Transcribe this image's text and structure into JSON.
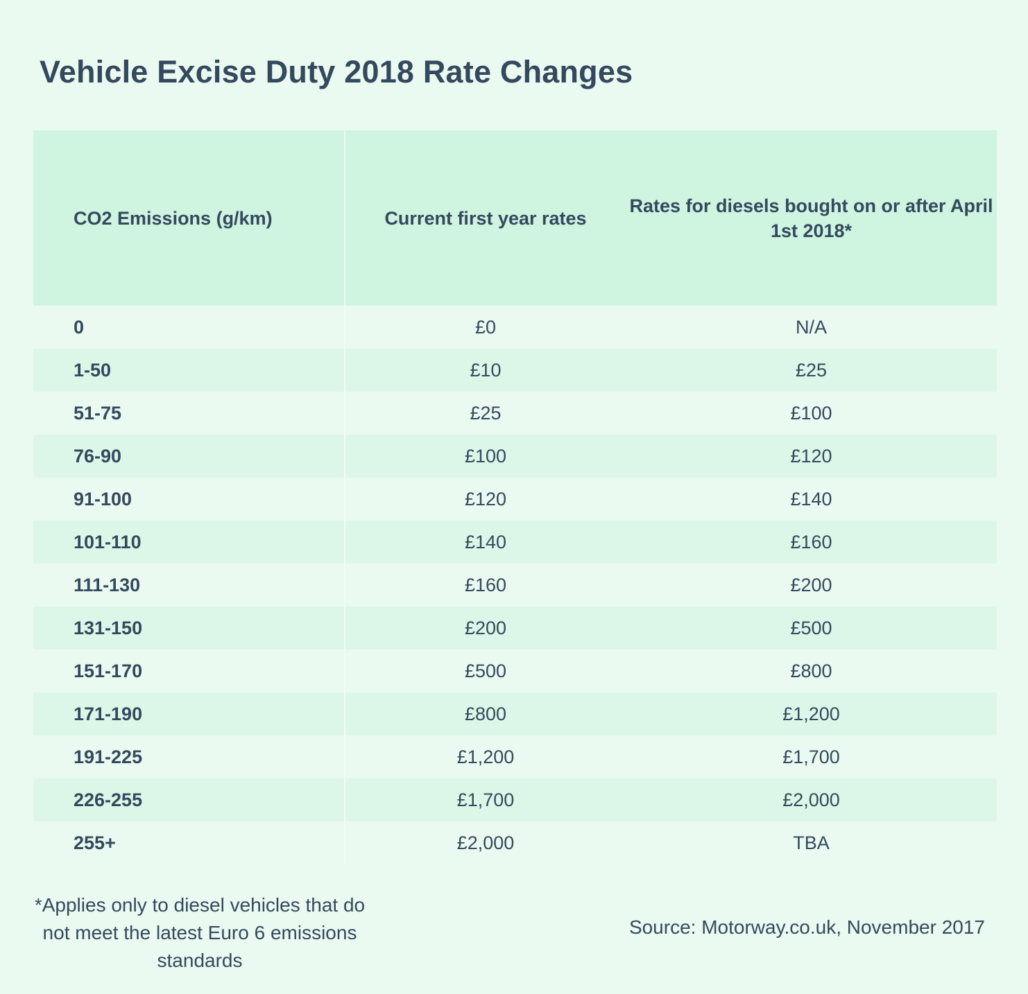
{
  "title": "Vehicle Excise Duty 2018 Rate Changes",
  "chart_data": {
    "type": "table",
    "columns": [
      "CO2 Emissions (g/km)",
      "Current first year rates",
      "Rates for diesels bought on or after April 1st 2018*"
    ],
    "rows": [
      [
        "0",
        "£0",
        "N/A"
      ],
      [
        "1-50",
        "£10",
        "£25"
      ],
      [
        "51-75",
        "£25",
        "£100"
      ],
      [
        "76-90",
        "£100",
        "£120"
      ],
      [
        "91-100",
        "£120",
        "£140"
      ],
      [
        "101-110",
        "£140",
        "£160"
      ],
      [
        "111-130",
        "£160",
        "£200"
      ],
      [
        "131-150",
        "£200",
        "£500"
      ],
      [
        "151-170",
        "£500",
        "£800"
      ],
      [
        "171-190",
        "£800",
        "£1,200"
      ],
      [
        "191-225",
        "£1,200",
        "£1,700"
      ],
      [
        "226-255",
        "£1,700",
        "£2,000"
      ],
      [
        "255+",
        "£2,000",
        "TBA"
      ]
    ]
  },
  "footnote": "*Applies only to diesel vehicles that do not meet the latest Euro 6 emissions standards",
  "source": "Source: Motorway.co.uk,  November 2017"
}
